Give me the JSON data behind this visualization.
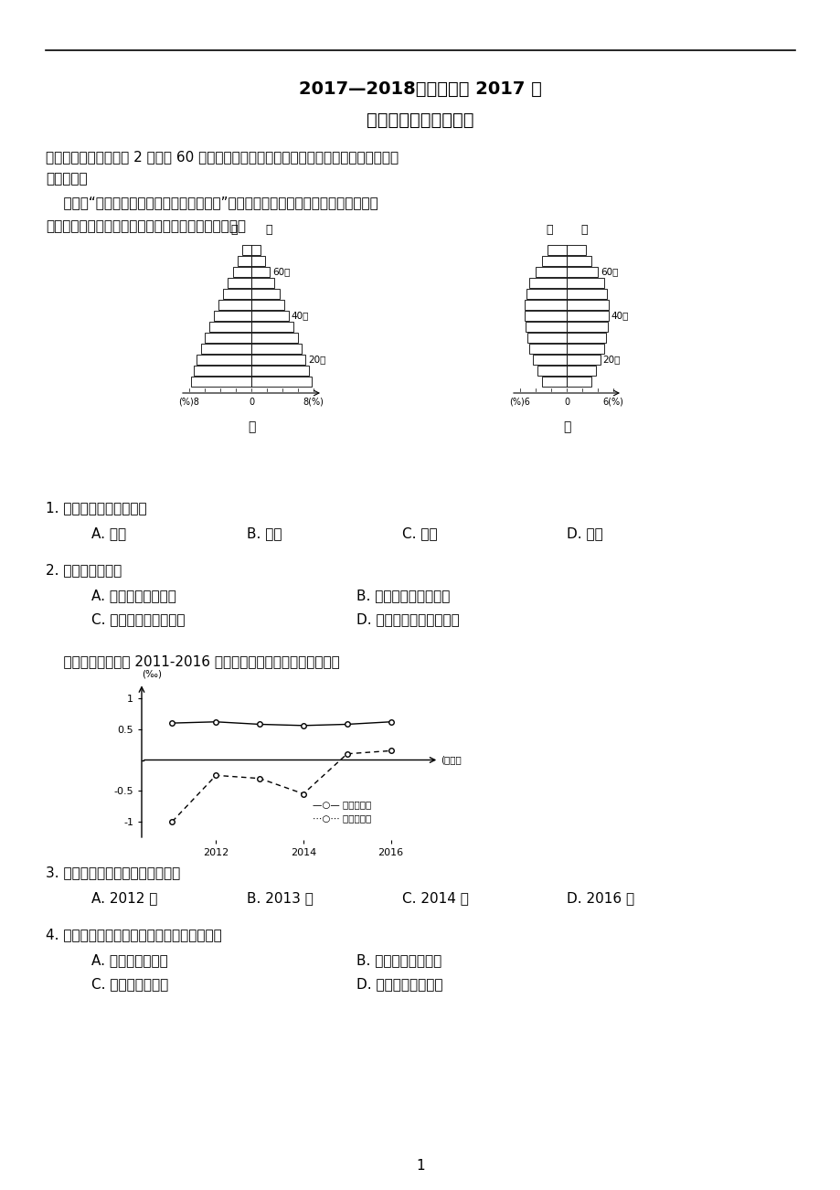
{
  "title1": "2017—2018学年下学期 2017 级",
  "title2": "第三次双周练地理试卷",
  "section1": "一、单项选择题（每题 2 分，共 60 分。每小题有且只有一个选项是正确的，错选、多选均",
  "section1b": "不得分。）",
  "intro_text": "    下图为“甲、乙两国人口年龄结构金字塔图”。图中分别反映了两国不同性别、不同年",
  "intro_text2": "龄阶段的人口占总人口的百分比。读图完成下面小题。",
  "q1": "1. 甲国最有可能是当今的",
  "q1_A": "A. 印度",
  "q1_B": "B. 美国",
  "q1_C": "C. 日本",
  "q1_D": "D. 英国",
  "q2": "2. 甲、乙两国相比",
  "q2_A": "A. 甲国人口出生率低",
  "q2_B": "B. 乙国劳动力资源丰富",
  "q2_C": "C. 乙国人口平均寿命短",
  "q2_D": "D. 甲国人口自然增长率高",
  "intro2": "    下图示意我国某省 2011-2016 年人口增长。据此完成下面小题。",
  "q3": "3. 图中人口数量变化最小的一年是",
  "q3_A": "A. 2012 年",
  "q3_B": "B. 2013 年",
  "q3_C": "C. 2014 年",
  "q3_D": "D. 2016 年",
  "q4": "4. 该省近三年来人口增长变化最主要的原因是",
  "q4_A": "A. 城市房价增长快",
  "q4_B": "B. 计划生育政策调整",
  "q4_C": "C. 产业升级和转移",
  "q4_D": "D. 生活水平大幅提高",
  "page_num": "1",
  "natural_rate_years": [
    2011,
    2012,
    2013,
    2014,
    2015,
    2016
  ],
  "natural_rate_values": [
    0.6,
    0.62,
    0.58,
    0.56,
    0.58,
    0.62
  ],
  "mechanical_rate_years": [
    2011,
    2012,
    2013,
    2014,
    2015,
    2016
  ],
  "mechanical_rate_values": [
    -1.0,
    -0.25,
    -0.3,
    -0.55,
    0.1,
    0.15
  ],
  "legend_natural": "—○— 自然增长率",
  "legend_mechanical": "…○… 机械增长率",
  "background_color": "#ffffff",
  "text_color": "#000000",
  "jia_widths": [
    1.2,
    1.8,
    2.4,
    3.0,
    3.6,
    4.2,
    4.8,
    5.4,
    6.0,
    6.5,
    7.0,
    7.4,
    7.8
  ],
  "yi_widths": [
    2.5,
    3.2,
    4.0,
    4.8,
    5.2,
    5.4,
    5.4,
    5.3,
    5.1,
    4.8,
    4.3,
    3.8,
    3.2
  ]
}
